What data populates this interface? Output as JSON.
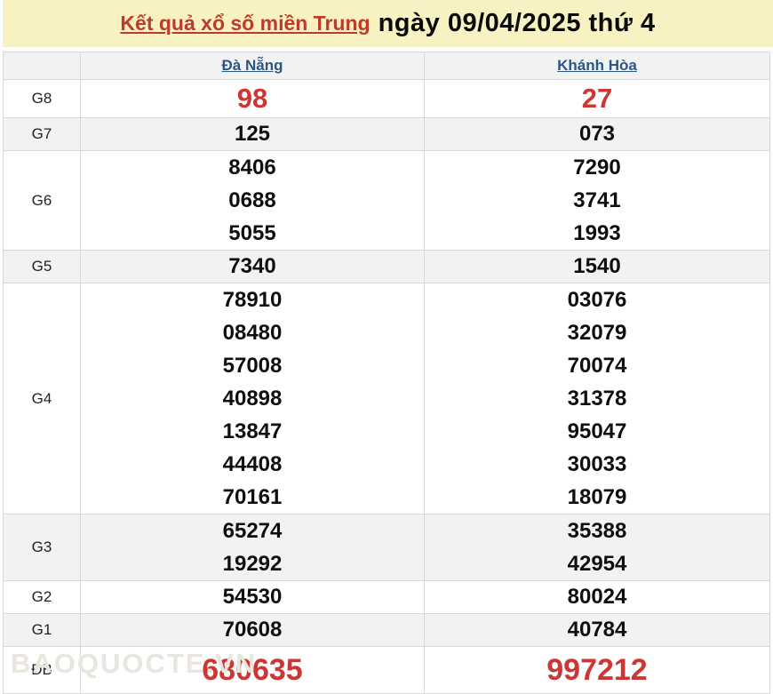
{
  "banner": {
    "title_link": "Kết quả xổ số miền Trung",
    "title_date": "ngày 09/04/2025 thứ 4"
  },
  "table": {
    "columns": [
      {
        "label": "Đà Nẵng"
      },
      {
        "label": "Khánh Hòa"
      }
    ],
    "rows": [
      {
        "label": "G8",
        "highlight": true,
        "cells": [
          [
            "98"
          ],
          [
            "27"
          ]
        ]
      },
      {
        "label": "G7",
        "highlight": false,
        "cells": [
          [
            "125"
          ],
          [
            "073"
          ]
        ]
      },
      {
        "label": "G6",
        "highlight": false,
        "cells": [
          [
            "8406",
            "0688",
            "5055"
          ],
          [
            "7290",
            "3741",
            "1993"
          ]
        ]
      },
      {
        "label": "G5",
        "highlight": false,
        "cells": [
          [
            "7340"
          ],
          [
            "1540"
          ]
        ]
      },
      {
        "label": "G4",
        "highlight": false,
        "cells": [
          [
            "78910",
            "08480",
            "57008",
            "40898",
            "13847",
            "44408",
            "70161"
          ],
          [
            "03076",
            "32079",
            "70074",
            "31378",
            "95047",
            "30033",
            "18079"
          ]
        ]
      },
      {
        "label": "G3",
        "highlight": false,
        "cells": [
          [
            "65274",
            "19292"
          ],
          [
            "35388",
            "42954"
          ]
        ]
      },
      {
        "label": "G2",
        "highlight": false,
        "cells": [
          [
            "54530"
          ],
          [
            "80024"
          ]
        ]
      },
      {
        "label": "G1",
        "highlight": false,
        "cells": [
          [
            "70608"
          ],
          [
            "40784"
          ]
        ]
      },
      {
        "label": "ĐB",
        "highlight": true,
        "cells": [
          [
            "680635"
          ],
          [
            "997212"
          ]
        ]
      }
    ]
  },
  "watermark": "BAOQUOCTE.VN",
  "colors": {
    "banner_bg": "#F8F1C2",
    "title_link_red": "#BE3A2A",
    "column_link_blue": "#2A5783",
    "highlight_number_red": "#CC3733",
    "alt_row_gray": "#F2F2F2",
    "border_gray": "#D8D8D8"
  }
}
